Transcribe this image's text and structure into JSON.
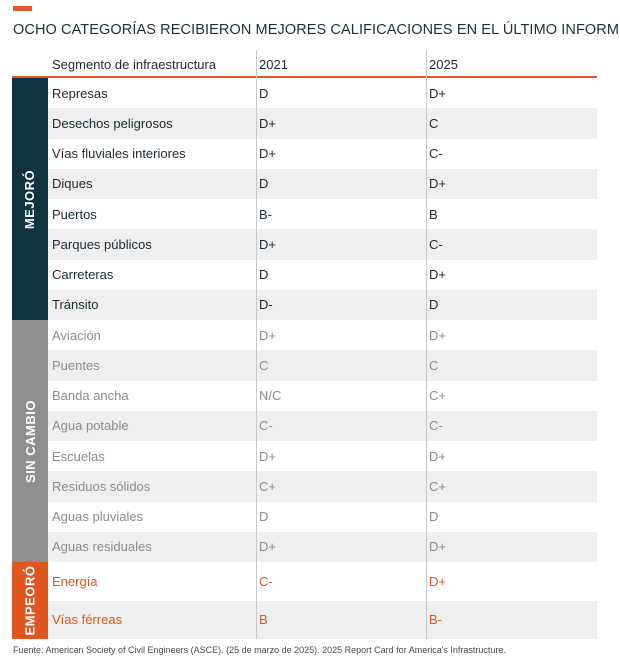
{
  "title": "OCHO CATEGORÍAS RECIBIERON MEJORES CALIFICACIONES EN EL ÚLTIMO INFORME",
  "header": {
    "segment": "Segmento de infraestructura",
    "year1": "2021",
    "year2": "2025"
  },
  "colors": {
    "accent": "#e4572e",
    "improved_band": "#0f3440",
    "nochange_band": "#8f8f8f",
    "worse_band": "#e0561f"
  },
  "groups": [
    {
      "id": "improved",
      "label": "MEJORÓ",
      "rows": [
        {
          "segment": "Represas",
          "y2021": "D",
          "y2025": "D+"
        },
        {
          "segment": "Desechos peligrosos",
          "y2021": "D+",
          "y2025": "C"
        },
        {
          "segment": "Vías fluviales interiores",
          "y2021": "D+",
          "y2025": "C-"
        },
        {
          "segment": "Diques",
          "y2021": "D",
          "y2025": "D+"
        },
        {
          "segment": "Puertos",
          "y2021": "B-",
          "y2025": "B"
        },
        {
          "segment": "Parques públicos",
          "y2021": "D+",
          "y2025": "C-"
        },
        {
          "segment": "Carreteras",
          "y2021": "D",
          "y2025": "D+"
        },
        {
          "segment": "Tránsito",
          "y2021": "D-",
          "y2025": "D"
        }
      ]
    },
    {
      "id": "nochange",
      "label": "SIN CAMBIO",
      "rows": [
        {
          "segment": "Aviación",
          "y2021": "D+",
          "y2025": "D+"
        },
        {
          "segment": "Puentes",
          "y2021": "C",
          "y2025": "C"
        },
        {
          "segment": "Banda ancha",
          "y2021": "N/C",
          "y2025": "C+"
        },
        {
          "segment": "Agua potable",
          "y2021": "C-",
          "y2025": "C-"
        },
        {
          "segment": "Escuelas",
          "y2021": "D+",
          "y2025": "D+"
        },
        {
          "segment": "Residuos sólidos",
          "y2021": "C+",
          "y2025": "C+"
        },
        {
          "segment": "Aguas pluviales",
          "y2021": "D",
          "y2025": "D"
        },
        {
          "segment": "Aguas residuales",
          "y2021": "D+",
          "y2025": "D+"
        }
      ]
    },
    {
      "id": "worse",
      "label": "EMPEORÓ",
      "rows": [
        {
          "segment": "Energía",
          "y2021": "C-",
          "y2025": "D+"
        },
        {
          "segment": "Vías férreas",
          "y2021": "B",
          "y2025": "B-"
        }
      ]
    }
  ],
  "source": "Fuente: American Society of Civil Engineers (ASCE). (25 de marzo de 2025). 2025 Report Card for America's Infrastructure."
}
